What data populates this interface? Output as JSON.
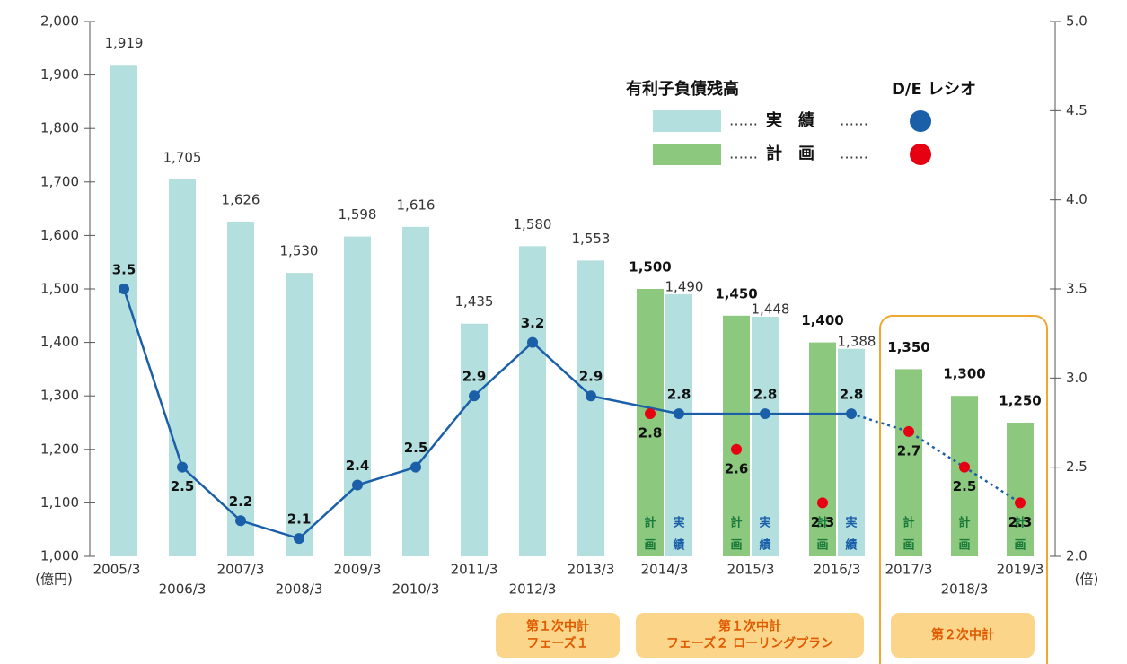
{
  "chart_data": {
    "type": "bar_line",
    "categories": [
      "2005/3",
      "2006/3",
      "2007/3",
      "2008/3",
      "2009/3",
      "2010/3",
      "2011/3",
      "2012/3",
      "2013/3",
      "2014/3",
      "2015/3",
      "2016/3",
      "2017/3",
      "2018/3",
      "2019/3"
    ],
    "y_unit": "(億円)",
    "y2_unit": "(倍)",
    "ylim": [
      1000,
      2000
    ],
    "yticks": [
      {
        "value": 1000,
        "label": "1,000"
      },
      {
        "value": 1100,
        "label": "1,100"
      },
      {
        "value": 1200,
        "label": "1,200"
      },
      {
        "value": 1300,
        "label": "1,300"
      },
      {
        "value": 1400,
        "label": "1,400"
      },
      {
        "value": 1500,
        "label": "1,500"
      },
      {
        "value": 1600,
        "label": "1,600"
      },
      {
        "value": 1700,
        "label": "1,700"
      },
      {
        "value": 1800,
        "label": "1,800"
      },
      {
        "value": 1900,
        "label": "1,900"
      },
      {
        "value": 2000,
        "label": "2,000"
      }
    ],
    "y2lim": [
      2,
      5
    ],
    "y2ticks": [
      {
        "value": 2,
        "label": "2.0"
      },
      {
        "value": 2.5,
        "label": "2.5"
      },
      {
        "value": 3,
        "label": "3.0"
      },
      {
        "value": 3.5,
        "label": "3.5"
      },
      {
        "value": 4,
        "label": "4.0"
      },
      {
        "value": 4.5,
        "label": "4.5"
      },
      {
        "value": 5,
        "label": "5.0"
      }
    ],
    "legend": {
      "bar_title": "有利子負債残高",
      "line_title": "D/E レシオ",
      "leader": "……"
    },
    "in_bar_labels": {
      "plan": [
        "計",
        "画"
      ],
      "actual": [
        "実",
        "績"
      ]
    },
    "series": [
      {
        "name": "実　績",
        "kind": "bar",
        "color": "#b3dfdf",
        "values": [
          1919,
          1705,
          1626,
          1530,
          1598,
          1616,
          1435,
          1580,
          1553,
          1490,
          1448,
          1388,
          null,
          null,
          null
        ],
        "value_labels": [
          "1,919",
          "1,705",
          "1,626",
          "1,530",
          "1,598",
          "1,616",
          "1,435",
          "1,580",
          "1,553",
          "1,490",
          "1,448",
          "1,388",
          null,
          null,
          null
        ]
      },
      {
        "name": "計　画",
        "kind": "bar",
        "color": "#8cc87e",
        "values": [
          null,
          null,
          null,
          null,
          null,
          null,
          null,
          null,
          null,
          1500,
          1450,
          1400,
          1350,
          1300,
          1250
        ],
        "value_labels": [
          null,
          null,
          null,
          null,
          null,
          null,
          null,
          null,
          null,
          "1,500",
          "1,450",
          "1,400",
          "1,350",
          "1,300",
          "1,250"
        ]
      },
      {
        "kind": "line",
        "axis": "y2",
        "color": "#1a5fa8",
        "values": [
          3.5,
          2.5,
          2.2,
          2.1,
          2.4,
          2.5,
          2.9,
          3.2,
          2.9,
          2.8,
          2.8,
          2.8,
          null,
          null,
          null
        ]
      },
      {
        "kind": "dot",
        "axis": "y2",
        "color": "#e60012",
        "values": [
          null,
          null,
          null,
          null,
          null,
          null,
          null,
          null,
          null,
          2.8,
          2.6,
          2.3,
          2.7,
          2.5,
          2.3
        ]
      }
    ],
    "phases": [
      {
        "lines": [
          "第１次中計",
          "フェーズ１"
        ]
      },
      {
        "lines": [
          "第１次中計",
          "フェーズ２ ローリングプラン"
        ]
      },
      {
        "lines": [
          "第２次中計"
        ]
      }
    ]
  }
}
